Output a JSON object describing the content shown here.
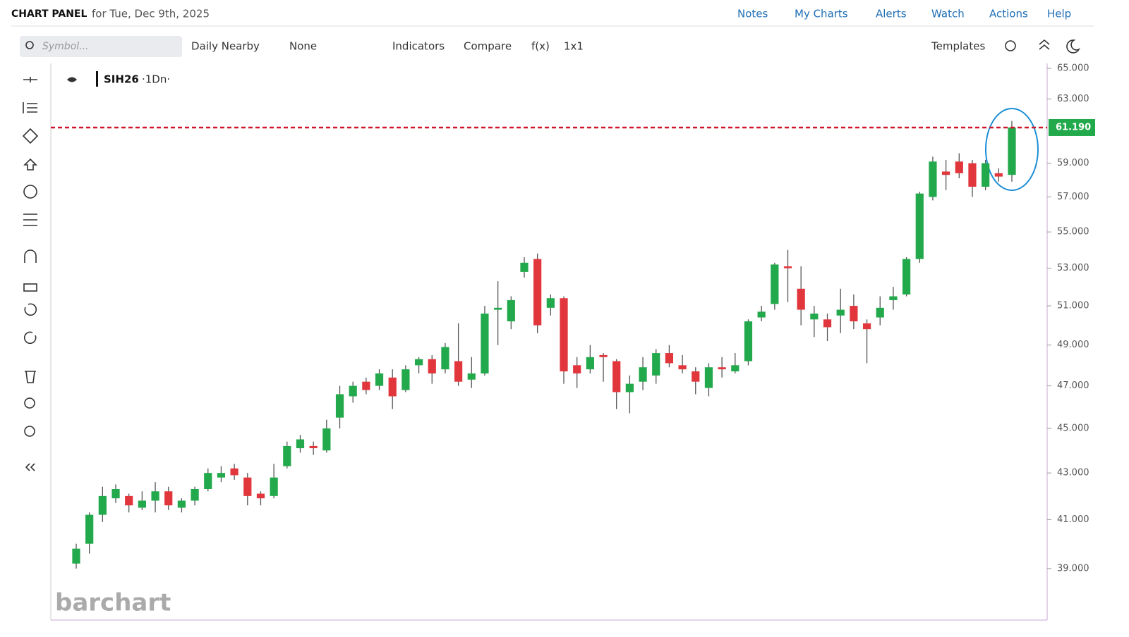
{
  "header": {
    "title": "CHART PANEL",
    "subtitle": "for Tue, Dec 9th, 2025",
    "nav": [
      "Notes",
      "My Charts",
      "Alerts",
      "Watch",
      "Actions",
      "Help"
    ]
  },
  "toolbar": {
    "search_placeholder": "Symbol...",
    "items": [
      "Daily Nearby",
      "None",
      "Indicators",
      "Compare",
      "f(x)",
      "1x1"
    ],
    "templates": "Templates"
  },
  "watermark": "barchart",
  "chart_data": {
    "type": "candlestick",
    "symbol": "SIH26",
    "interval": "·1Dn·",
    "up_color": "#22a94b",
    "down_color": "#e2363d",
    "log_scale": true,
    "ylim": [
      37.0,
      65.33
    ],
    "yticks": [
      {
        "value": 39,
        "label": "39.000"
      },
      {
        "value": 41,
        "label": "41.000"
      },
      {
        "value": 43,
        "label": "43.000"
      },
      {
        "value": 45,
        "label": "45.000"
      },
      {
        "value": 47,
        "label": "47.000"
      },
      {
        "value": 49,
        "label": "49.000"
      },
      {
        "value": 51,
        "label": "51.000"
      },
      {
        "value": 53,
        "label": "53.000"
      },
      {
        "value": 55,
        "label": "55.000"
      },
      {
        "value": 57,
        "label": "57.000"
      },
      {
        "value": 59,
        "label": "59.000"
      },
      {
        "value": 63,
        "label": "63.000"
      },
      {
        "value": 65,
        "label": "65.000"
      }
    ],
    "price_line": {
      "value": 61.19,
      "label": "61.190",
      "color": "#d0142c"
    },
    "open": [
      39.2,
      40.0,
      41.2,
      41.9,
      42.0,
      41.5,
      41.8,
      42.2,
      41.5,
      41.8,
      42.3,
      42.8,
      43.2,
      42.8,
      42.1,
      42.0,
      43.3,
      44.1,
      44.2,
      44.0,
      45.5,
      46.5,
      47.2,
      47.0,
      47.4,
      46.8,
      48.0,
      48.3,
      47.8,
      48.2,
      47.3,
      47.6,
      50.8,
      50.2,
      52.8,
      53.5,
      50.9,
      51.4,
      48.0,
      47.8,
      48.5,
      48.2,
      46.7,
      47.2,
      47.5,
      48.6,
      48.0,
      47.7,
      46.9,
      47.9,
      47.7,
      48.2,
      50.4,
      51.1,
      53.1,
      51.9,
      50.3,
      50.3,
      50.5,
      51.0,
      50.1,
      50.4,
      51.3,
      51.6,
      53.5,
      57.0,
      58.5,
      59.1,
      59.0,
      57.6,
      58.4,
      58.3
    ],
    "high": [
      40.0,
      41.3,
      42.4,
      42.5,
      42.1,
      42.2,
      42.6,
      42.4,
      41.9,
      42.4,
      43.2,
      43.3,
      43.4,
      43.0,
      42.2,
      43.4,
      44.4,
      44.7,
      44.4,
      45.4,
      47.0,
      47.2,
      47.4,
      47.8,
      47.8,
      48.0,
      48.4,
      48.5,
      49.1,
      50.1,
      48.4,
      51.0,
      52.3,
      51.5,
      53.6,
      53.8,
      51.6,
      51.5,
      48.4,
      49.0,
      48.6,
      48.3,
      47.5,
      48.4,
      48.8,
      49.0,
      48.5,
      47.9,
      48.1,
      48.4,
      48.6,
      50.3,
      51.0,
      53.3,
      54.0,
      53.1,
      51.0,
      50.6,
      51.9,
      51.6,
      50.3,
      51.5,
      52.0,
      53.6,
      57.3,
      59.4,
      59.2,
      59.6,
      59.2,
      59.2,
      58.7,
      61.6
    ],
    "low": [
      39.0,
      39.6,
      40.9,
      41.7,
      41.3,
      41.4,
      41.3,
      41.4,
      41.3,
      41.6,
      42.2,
      42.6,
      42.7,
      41.6,
      41.6,
      41.9,
      43.2,
      43.9,
      43.8,
      43.9,
      45.0,
      46.2,
      46.6,
      46.8,
      45.9,
      46.7,
      47.6,
      47.1,
      47.6,
      47.0,
      46.9,
      47.5,
      49.0,
      49.8,
      52.5,
      49.6,
      50.5,
      47.1,
      46.9,
      47.6,
      47.2,
      45.9,
      45.7,
      46.8,
      47.1,
      47.9,
      47.6,
      46.6,
      46.5,
      47.4,
      47.6,
      48.0,
      50.2,
      50.8,
      51.2,
      50.0,
      49.4,
      49.2,
      49.6,
      49.8,
      48.1,
      50.0,
      50.8,
      51.5,
      53.3,
      56.8,
      57.4,
      58.1,
      57.0,
      57.4,
      57.9,
      57.9
    ],
    "close": [
      39.8,
      41.2,
      42.0,
      42.3,
      41.6,
      41.8,
      42.2,
      41.6,
      41.8,
      42.3,
      43.0,
      43.0,
      42.9,
      42.0,
      41.9,
      42.8,
      44.2,
      44.5,
      44.1,
      45.0,
      46.6,
      47.0,
      46.8,
      47.6,
      46.5,
      47.8,
      48.3,
      47.6,
      48.9,
      47.2,
      47.6,
      50.6,
      50.9,
      51.3,
      53.3,
      50.0,
      51.4,
      47.7,
      47.6,
      48.4,
      48.4,
      46.7,
      47.1,
      47.9,
      48.6,
      48.1,
      47.8,
      47.2,
      47.9,
      47.8,
      48.0,
      50.2,
      50.7,
      53.2,
      53.0,
      50.8,
      50.6,
      49.9,
      50.8,
      50.2,
      49.8,
      50.9,
      51.5,
      53.5,
      57.2,
      59.1,
      58.3,
      58.4,
      57.6,
      59.0,
      58.2,
      61.19
    ]
  }
}
